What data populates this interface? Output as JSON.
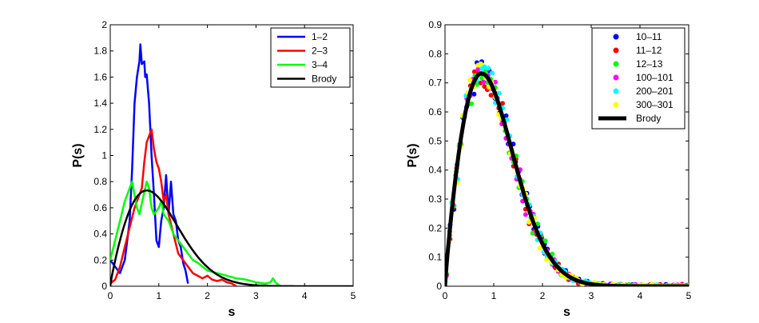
{
  "chart_data": [
    {
      "type": "line",
      "xlabel": "s",
      "ylabel": "P(s)",
      "xlim": [
        0,
        5
      ],
      "ylim": [
        0,
        2
      ],
      "xticks": [
        0,
        1,
        2,
        3,
        4,
        5
      ],
      "yticks": [
        0,
        0.2,
        0.4,
        0.6,
        0.8,
        1,
        1.2,
        1.4,
        1.6,
        1.8,
        2
      ],
      "xtick_labels": [
        "0",
        "1",
        "2",
        "3",
        "4",
        "5"
      ],
      "ytick_labels": [
        "0",
        "0.2",
        "0.4",
        "0.6",
        "0.8",
        "1",
        "1.2",
        "1.4",
        "1.6",
        "1.8",
        "2"
      ],
      "grid": false,
      "legend_position": "top-right",
      "series": [
        {
          "name": "1–2",
          "color": "#0000ff",
          "x": [
            0.0,
            0.1,
            0.2,
            0.3,
            0.4,
            0.45,
            0.5,
            0.55,
            0.6,
            0.62,
            0.65,
            0.7,
            0.72,
            0.75,
            0.8,
            0.85,
            0.9,
            0.95,
            1.0,
            1.05,
            1.1,
            1.15,
            1.2,
            1.25,
            1.3,
            1.35,
            1.4,
            1.45,
            1.5,
            1.55,
            1.6
          ],
          "y": [
            0.2,
            0.15,
            0.1,
            0.2,
            0.5,
            0.9,
            1.4,
            1.6,
            1.72,
            1.85,
            1.7,
            1.72,
            1.6,
            1.62,
            1.4,
            1.0,
            0.7,
            0.35,
            0.3,
            0.5,
            0.6,
            0.85,
            0.55,
            0.8,
            0.55,
            0.5,
            0.35,
            0.3,
            0.18,
            0.12,
            0.02
          ]
        },
        {
          "name": "2–3",
          "color": "#ff0000",
          "x": [
            0.0,
            0.1,
            0.2,
            0.3,
            0.4,
            0.5,
            0.6,
            0.65,
            0.7,
            0.75,
            0.8,
            0.85,
            0.9,
            0.95,
            1.0,
            1.05,
            1.1,
            1.15,
            1.2,
            1.3,
            1.4,
            1.5,
            1.6,
            1.7,
            1.8,
            1.9,
            2.0,
            2.1,
            2.2,
            2.3,
            2.4,
            2.5,
            2.6
          ],
          "y": [
            0.02,
            0.05,
            0.15,
            0.3,
            0.45,
            0.6,
            0.7,
            0.75,
            0.95,
            1.1,
            1.15,
            1.2,
            1.05,
            0.95,
            0.9,
            0.8,
            0.65,
            0.7,
            0.55,
            0.4,
            0.25,
            0.2,
            0.15,
            0.1,
            0.08,
            0.06,
            0.08,
            0.05,
            0.04,
            0.05,
            0.03,
            0.02,
            0.0
          ]
        },
        {
          "name": "3–4",
          "color": "#00ff00",
          "x": [
            0.0,
            0.1,
            0.2,
            0.3,
            0.4,
            0.45,
            0.5,
            0.55,
            0.6,
            0.7,
            0.75,
            0.8,
            0.85,
            0.9,
            1.0,
            1.05,
            1.1,
            1.2,
            1.3,
            1.4,
            1.5,
            1.6,
            1.7,
            1.8,
            2.0,
            2.2,
            2.4,
            2.6,
            2.8,
            3.0,
            3.2,
            3.3,
            3.35,
            3.4,
            3.5
          ],
          "y": [
            0.2,
            0.35,
            0.5,
            0.65,
            0.75,
            0.8,
            0.7,
            0.6,
            0.55,
            0.72,
            0.8,
            0.75,
            0.6,
            0.55,
            0.6,
            0.65,
            0.55,
            0.5,
            0.4,
            0.35,
            0.3,
            0.25,
            0.2,
            0.18,
            0.12,
            0.1,
            0.08,
            0.06,
            0.05,
            0.03,
            0.02,
            0.03,
            0.06,
            0.03,
            0.0
          ]
        },
        {
          "name": "Brody",
          "color": "#000000",
          "curve": "brody",
          "brody_beta": 0.88
        }
      ]
    },
    {
      "type": "scatter",
      "xlabel": "s",
      "ylabel": "P(s)",
      "xlim": [
        0,
        5
      ],
      "ylim": [
        0,
        0.9
      ],
      "xticks": [
        0,
        1,
        2,
        3,
        4,
        5
      ],
      "yticks": [
        0,
        0.1,
        0.2,
        0.3,
        0.4,
        0.5,
        0.6,
        0.7,
        0.8,
        0.9
      ],
      "xtick_labels": [
        "0",
        "1",
        "2",
        "3",
        "4",
        "5"
      ],
      "ytick_labels": [
        "0",
        "0.1",
        "0.2",
        "0.3",
        "0.4",
        "0.5",
        "0.6",
        "0.7",
        "0.8",
        "0.9"
      ],
      "grid": false,
      "legend_position": "top-right",
      "series": [
        {
          "name": "10–11",
          "color": "#0000ff",
          "brody_beta": 0.88,
          "noise_seed": 1
        },
        {
          "name": "11–12",
          "color": "#ff0000",
          "brody_beta": 0.88,
          "noise_seed": 2
        },
        {
          "name": "12–13",
          "color": "#00ff00",
          "brody_beta": 0.88,
          "noise_seed": 3
        },
        {
          "name": "100–101",
          "color": "#ff00ff",
          "brody_beta": 0.88,
          "noise_seed": 4
        },
        {
          "name": "200–201",
          "color": "#00ffff",
          "brody_beta": 0.88,
          "noise_seed": 5
        },
        {
          "name": "300–301",
          "color": "#ffff00",
          "brody_beta": 0.88,
          "noise_seed": 6
        },
        {
          "name": "Brody",
          "color": "#000000",
          "curve": "brody",
          "brody_beta": 0.88
        }
      ]
    }
  ]
}
